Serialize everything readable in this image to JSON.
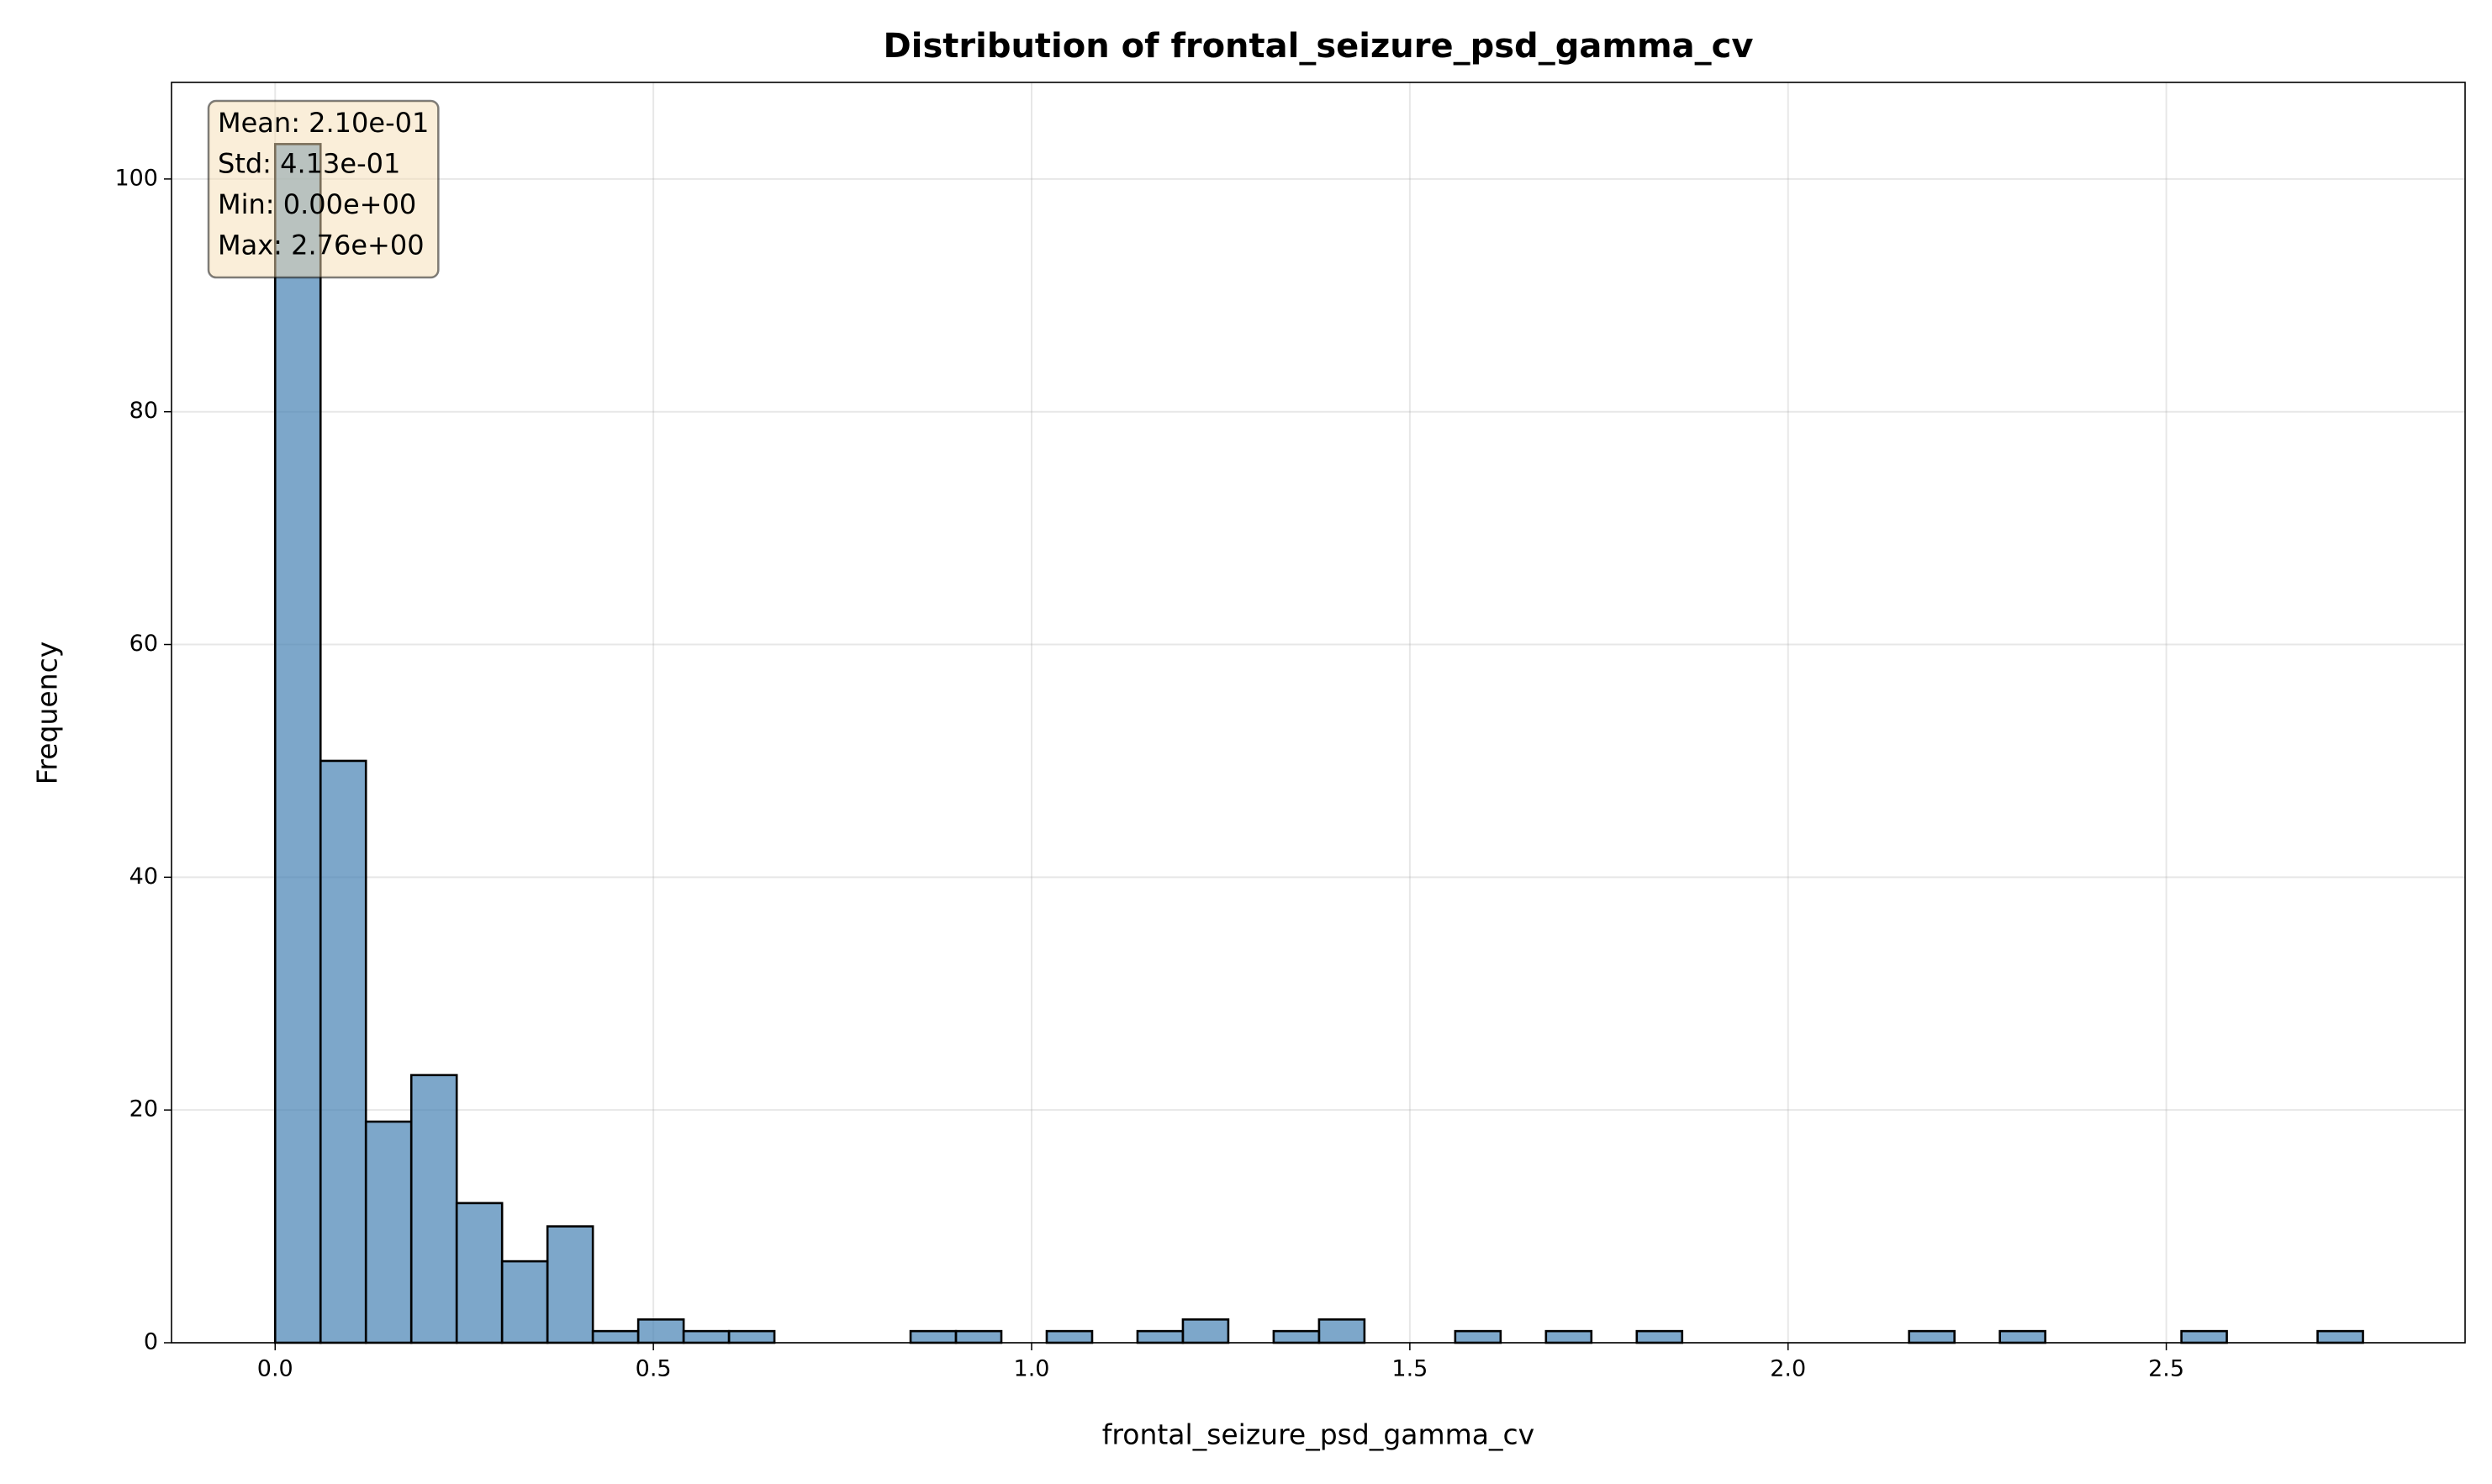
{
  "chart_data": {
    "type": "histogram",
    "title": "Distribution of frontal_seizure_psd_gamma_cv",
    "x_label": "frontal_seizure_psd_gamma_cv",
    "y_label": "Frequency",
    "bins": [
      0,
      0.06,
      0.12,
      0.18,
      0.24,
      0.3,
      0.36,
      0.42,
      0.48,
      0.54,
      0.6,
      0.66,
      0.72,
      0.78,
      0.84,
      0.9,
      0.96,
      1.02,
      1.08,
      1.14,
      1.2,
      1.26,
      1.32,
      1.38,
      1.44,
      1.5,
      1.56,
      1.62,
      1.68,
      1.74,
      1.8,
      1.86,
      1.92,
      1.98,
      2.04,
      2.1,
      2.16,
      2.22,
      2.28,
      2.34,
      2.4,
      2.46,
      2.52,
      2.58,
      2.64,
      2.7,
      2.76
    ],
    "counts": [
      103,
      50,
      19,
      23,
      12,
      7,
      10,
      1,
      2,
      1,
      1,
      0,
      0,
      0,
      1,
      1,
      0,
      1,
      0,
      1,
      2,
      0,
      1,
      2,
      0,
      0,
      1,
      0,
      1,
      0,
      1,
      0,
      0,
      0,
      0,
      0,
      1,
      0,
      1,
      0,
      0,
      0,
      1,
      0,
      0,
      1
    ],
    "color": "#4682b4",
    "xlim": [
      -0.137,
      2.895
    ],
    "ylim": [
      0,
      108.3
    ],
    "xticks": [
      {
        "value": 0,
        "label": "0.0"
      },
      0.5,
      {
        "value": 1,
        "label": "1.0"
      },
      1.5,
      {
        "value": 2,
        "label": "2.0"
      },
      2.5
    ],
    "yticks": [
      0,
      20,
      40,
      60,
      80,
      100
    ],
    "grid": true,
    "annotations": [
      "Mean: 2.10e-01",
      "Std: 4.13e-01",
      "Min: 0.00e+00",
      "Max: 2.76e+00"
    ]
  }
}
